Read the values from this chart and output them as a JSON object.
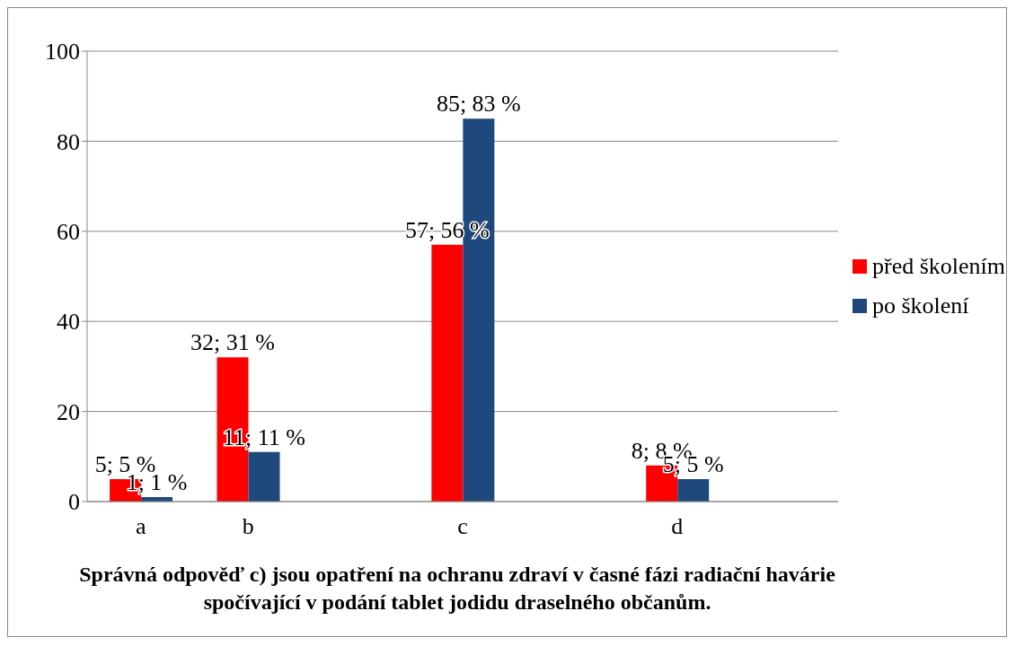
{
  "chart_data": {
    "type": "bar",
    "title": "Správná odpověď c) jsou opatření na ochranu zdraví v časné fázi radiační havárie spočívající v podání tablet jodidu draselného občanům.",
    "categories": [
      "a",
      "b",
      null,
      "c",
      null,
      "d",
      null
    ],
    "series": [
      {
        "name": "před školením",
        "color": "#ff0000",
        "values": [
          5,
          32,
          null,
          57,
          null,
          8,
          null
        ],
        "value_labels": [
          "5; 5 %",
          "32; 31 %",
          null,
          "57; 56 %",
          null,
          "8; 8 %",
          null
        ]
      },
      {
        "name": "po školení",
        "color": "#1f497d",
        "values": [
          1,
          11,
          null,
          85,
          null,
          5,
          null
        ],
        "value_labels": [
          "1; 1 %",
          "11; 11 %",
          null,
          "85; 83 %",
          null,
          "5; 5 %",
          null
        ]
      }
    ],
    "ylim": [
      0,
      100
    ],
    "yticks": [
      0,
      20,
      40,
      60,
      80,
      100
    ],
    "grid": "y",
    "legend": "right"
  }
}
